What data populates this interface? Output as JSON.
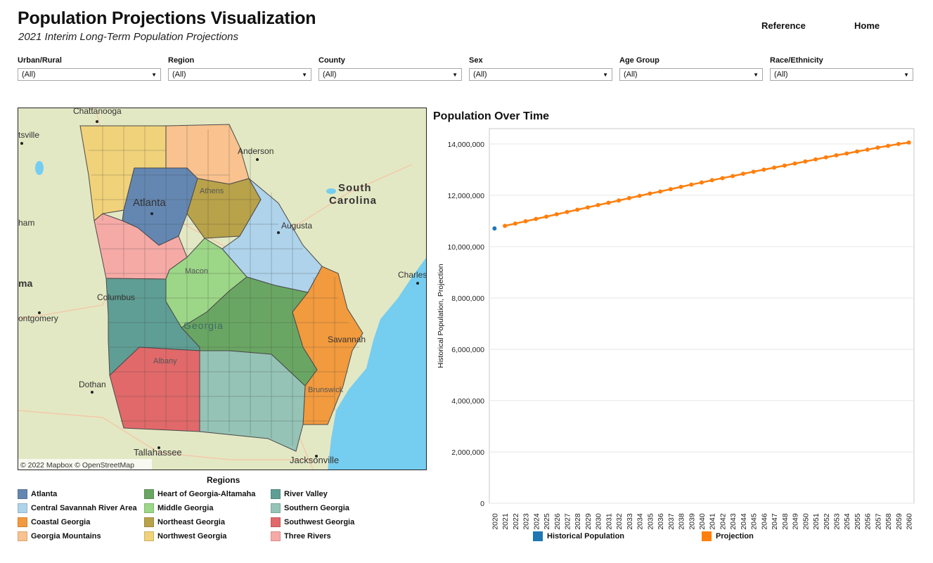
{
  "header": {
    "title": "Population Projections Visualization",
    "subtitle": "2021 Interim Long-Term Population Projections",
    "nav": [
      "Reference",
      "Home"
    ]
  },
  "filters": [
    {
      "label": "Urban/Rural",
      "value": "(All)"
    },
    {
      "label": "Region",
      "value": "(All)"
    },
    {
      "label": "County",
      "value": "(All)"
    },
    {
      "label": "Sex",
      "value": "(All)"
    },
    {
      "label": "Age Group",
      "value": "(All)"
    },
    {
      "label": "Race/Ethnicity",
      "value": "(All)"
    }
  ],
  "map": {
    "attribution": "© 2022 Mapbox  © OpenStreetMap",
    "places": [
      "Chattanooga",
      "tsville",
      "Anderson",
      "South",
      "Carolina",
      "Atlanta",
      "Athens",
      "Augusta",
      "ham",
      "Macon",
      "Charles",
      "ma",
      "Columbus",
      "ontgomery",
      "Georgia",
      "Savannah",
      "Albany",
      "Dothan",
      "Brunswick",
      "Tallahassee",
      "Jacksonville"
    ],
    "colors": {
      "land": "#e3e8c4",
      "water": "#75cdf0",
      "outline": "#4a4a4a"
    }
  },
  "regions": {
    "title": "Regions",
    "items": [
      {
        "name": "Atlanta",
        "color": "#6487b2"
      },
      {
        "name": "Central Savannah River Area",
        "color": "#aed3ea"
      },
      {
        "name": "Coastal Georgia",
        "color": "#f29a3e"
      },
      {
        "name": "Georgia Mountains",
        "color": "#f9c28e"
      },
      {
        "name": "Heart of Georgia-Altamaha",
        "color": "#6aa663"
      },
      {
        "name": "Middle Georgia",
        "color": "#9cd687"
      },
      {
        "name": "Northeast Georgia",
        "color": "#b8a24a"
      },
      {
        "name": "Northwest Georgia",
        "color": "#f0d27a"
      },
      {
        "name": "River Valley",
        "color": "#5f9e94"
      },
      {
        "name": "Southern Georgia",
        "color": "#95c3b6"
      },
      {
        "name": "Southwest Georgia",
        "color": "#e1696a"
      },
      {
        "name": "Three Rivers",
        "color": "#f6aaa6"
      }
    ]
  },
  "chart_data": {
    "type": "line",
    "title": "Population Over Time",
    "ylabel": "Historical Population, Projection",
    "xlabel": "",
    "x": [
      2020,
      2021,
      2022,
      2023,
      2024,
      2025,
      2026,
      2027,
      2028,
      2029,
      2030,
      2031,
      2032,
      2033,
      2034,
      2035,
      2036,
      2037,
      2038,
      2039,
      2040,
      2041,
      2042,
      2043,
      2044,
      2045,
      2046,
      2047,
      2048,
      2049,
      2050,
      2051,
      2052,
      2053,
      2054,
      2055,
      2056,
      2057,
      2058,
      2059,
      2060
    ],
    "ylim": [
      0,
      14600000
    ],
    "yticks": [
      0,
      2000000,
      4000000,
      6000000,
      8000000,
      10000000,
      12000000,
      14000000
    ],
    "ytick_labels": [
      "0",
      "2,000,000",
      "4,000,000",
      "6,000,000",
      "8,000,000",
      "10,000,000",
      "12,000,000",
      "14,000,000"
    ],
    "grid": true,
    "legend": "bottom",
    "series": [
      {
        "name": "Historical Population",
        "color": "#1f77b4",
        "points": [
          [
            2020,
            10710000
          ]
        ]
      },
      {
        "name": "Projection",
        "color": "#ff7f0e",
        "points": [
          [
            2021,
            10810000
          ],
          [
            2022,
            10900000
          ],
          [
            2023,
            10990000
          ],
          [
            2024,
            11080000
          ],
          [
            2025,
            11170000
          ],
          [
            2026,
            11260000
          ],
          [
            2027,
            11350000
          ],
          [
            2028,
            11440000
          ],
          [
            2029,
            11530000
          ],
          [
            2030,
            11620000
          ],
          [
            2031,
            11710000
          ],
          [
            2032,
            11800000
          ],
          [
            2033,
            11890000
          ],
          [
            2034,
            11980000
          ],
          [
            2035,
            12070000
          ],
          [
            2036,
            12150000
          ],
          [
            2037,
            12240000
          ],
          [
            2038,
            12330000
          ],
          [
            2039,
            12420000
          ],
          [
            2040,
            12500000
          ],
          [
            2041,
            12590000
          ],
          [
            2042,
            12670000
          ],
          [
            2043,
            12750000
          ],
          [
            2044,
            12840000
          ],
          [
            2045,
            12920000
          ],
          [
            2046,
            13000000
          ],
          [
            2047,
            13080000
          ],
          [
            2048,
            13160000
          ],
          [
            2049,
            13240000
          ],
          [
            2050,
            13320000
          ],
          [
            2051,
            13400000
          ],
          [
            2052,
            13480000
          ],
          [
            2053,
            13560000
          ],
          [
            2054,
            13630000
          ],
          [
            2055,
            13710000
          ],
          [
            2056,
            13780000
          ],
          [
            2057,
            13860000
          ],
          [
            2058,
            13930000
          ],
          [
            2059,
            14000000
          ],
          [
            2060,
            14060000
          ]
        ]
      }
    ]
  }
}
